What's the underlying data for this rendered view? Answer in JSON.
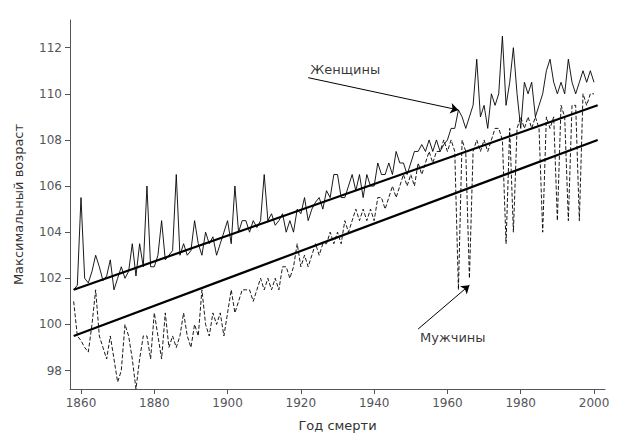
{
  "chart_data": {
    "type": "line",
    "xlabel": "Год смерти",
    "ylabel": "Максимальный возраст",
    "xlim": [
      1857,
      2003
    ],
    "ylim": [
      97.2,
      113.2
    ],
    "xticks": [
      1860,
      1880,
      1900,
      1920,
      1940,
      1960,
      1980,
      2000
    ],
    "yticks": [
      98,
      100,
      102,
      104,
      106,
      108,
      110,
      112
    ],
    "grid": false,
    "series": [
      {
        "color": "#000000",
        "line_style": "solid",
        "x": [
          1858,
          1859,
          1860,
          1861,
          1862,
          1863,
          1864,
          1865,
          1866,
          1867,
          1868,
          1869,
          1870,
          1871,
          1872,
          1873,
          1874,
          1875,
          1876,
          1877,
          1878,
          1879,
          1880,
          1881,
          1882,
          1883,
          1884,
          1885,
          1886,
          1887,
          1888,
          1889,
          1890,
          1891,
          1892,
          1893,
          1894,
          1895,
          1896,
          1897,
          1898,
          1899,
          1900,
          1901,
          1902,
          1903,
          1904,
          1905,
          1906,
          1907,
          1908,
          1909,
          1910,
          1911,
          1912,
          1913,
          1914,
          1915,
          1916,
          1917,
          1918,
          1919,
          1920,
          1921,
          1922,
          1923,
          1924,
          1925,
          1926,
          1927,
          1928,
          1929,
          1930,
          1931,
          1932,
          1933,
          1934,
          1935,
          1936,
          1937,
          1938,
          1939,
          1940,
          1941,
          1942,
          1943,
          1944,
          1945,
          1946,
          1947,
          1948,
          1949,
          1950,
          1951,
          1952,
          1953,
          1954,
          1955,
          1956,
          1957,
          1958,
          1959,
          1960,
          1961,
          1962,
          1963,
          1964,
          1965,
          1966,
          1967,
          1968,
          1969,
          1970,
          1971,
          1972,
          1973,
          1974,
          1975,
          1976,
          1977,
          1978,
          1979,
          1980,
          1981,
          1982,
          1983,
          1984,
          1985,
          1986,
          1987,
          1988,
          1989,
          1990,
          1991,
          1992,
          1993,
          1994,
          1995,
          1996,
          1997,
          1998,
          1999,
          2000
        ],
        "values": [
          101.5,
          101.7,
          105.5,
          102.0,
          101.8,
          102.3,
          103.0,
          102.5,
          101.9,
          102.1,
          102.8,
          101.5,
          102.0,
          102.5,
          102.0,
          102.3,
          103.5,
          102.1,
          103.5,
          102.5,
          106.0,
          102.5,
          102.5,
          103.0,
          104.5,
          102.8,
          103.0,
          103.2,
          106.5,
          103.0,
          103.5,
          103.0,
          103.2,
          104.5,
          103.5,
          103.0,
          104.0,
          103.5,
          103.8,
          103.0,
          103.5,
          104.0,
          104.5,
          103.5,
          106.0,
          104.0,
          104.5,
          104.5,
          104.0,
          104.5,
          104.2,
          104.5,
          106.5,
          104.5,
          104.8,
          104.3,
          104.5,
          104.8,
          104.0,
          104.5,
          104.0,
          105.0,
          104.8,
          105.5,
          104.5,
          105.0,
          105.3,
          105.5,
          105.0,
          105.8,
          105.5,
          106.5,
          106.5,
          105.5,
          105.5,
          106.0,
          106.5,
          105.8,
          106.5,
          105.5,
          106.5,
          106.0,
          106.0,
          107.0,
          106.5,
          106.5,
          107.0,
          106.5,
          107.5,
          107.0,
          107.0,
          106.5,
          107.0,
          107.5,
          107.5,
          107.8,
          107.5,
          108.0,
          107.5,
          108.0,
          107.5,
          107.8,
          108.0,
          108.5,
          108.5,
          109.3,
          109.0,
          108.5,
          109.0,
          109.5,
          111.5,
          109.0,
          109.5,
          108.5,
          110.0,
          109.5,
          110.0,
          112.5,
          109.5,
          110.5,
          112.0,
          110.0,
          108.5,
          110.5,
          110.0,
          110.5,
          109.0,
          109.5,
          110.0,
          111.0,
          111.5,
          110.5,
          110.0,
          110.5,
          110.0,
          111.5,
          110.5,
          110.0,
          110.5,
          111.0,
          110.5,
          111.0,
          110.5
        ]
      },
      {
        "color": "#000000",
        "line_style": "dashed",
        "x": [
          1858,
          1859,
          1860,
          1861,
          1862,
          1863,
          1864,
          1865,
          1866,
          1867,
          1868,
          1869,
          1870,
          1871,
          1872,
          1873,
          1874,
          1875,
          1876,
          1877,
          1878,
          1879,
          1880,
          1881,
          1882,
          1883,
          1884,
          1885,
          1886,
          1887,
          1888,
          1889,
          1890,
          1891,
          1892,
          1893,
          1894,
          1895,
          1896,
          1897,
          1898,
          1899,
          1900,
          1901,
          1902,
          1903,
          1904,
          1905,
          1906,
          1907,
          1908,
          1909,
          1910,
          1911,
          1912,
          1913,
          1914,
          1915,
          1916,
          1917,
          1918,
          1919,
          1920,
          1921,
          1922,
          1923,
          1924,
          1925,
          1926,
          1927,
          1928,
          1929,
          1930,
          1931,
          1932,
          1933,
          1934,
          1935,
          1936,
          1937,
          1938,
          1939,
          1940,
          1941,
          1942,
          1943,
          1944,
          1945,
          1946,
          1947,
          1948,
          1949,
          1950,
          1951,
          1952,
          1953,
          1954,
          1955,
          1956,
          1957,
          1958,
          1959,
          1960,
          1961,
          1962,
          1963,
          1964,
          1965,
          1966,
          1967,
          1968,
          1969,
          1970,
          1971,
          1972,
          1973,
          1974,
          1975,
          1976,
          1977,
          1978,
          1979,
          1980,
          1981,
          1982,
          1983,
          1984,
          1985,
          1986,
          1987,
          1988,
          1989,
          1990,
          1991,
          1992,
          1993,
          1994,
          1995,
          1996,
          1997,
          1998,
          1999,
          2000
        ],
        "values": [
          101.0,
          99.5,
          99.3,
          99.0,
          98.8,
          100.0,
          101.5,
          99.5,
          99.0,
          98.5,
          99.5,
          98.5,
          97.5,
          98.0,
          100.0,
          99.5,
          98.5,
          97.2,
          98.5,
          99.5,
          99.5,
          98.5,
          100.5,
          99.5,
          98.5,
          100.5,
          99.0,
          99.5,
          99.0,
          99.5,
          100.5,
          99.5,
          99.0,
          100.0,
          99.5,
          101.5,
          100.0,
          99.5,
          100.5,
          100.0,
          100.5,
          99.5,
          100.5,
          101.5,
          100.5,
          101.0,
          101.5,
          101.5,
          101.5,
          101.0,
          101.5,
          102.0,
          101.5,
          102.0,
          101.5,
          102.0,
          101.5,
          102.5,
          102.5,
          102.0,
          102.5,
          103.5,
          102.5,
          103.0,
          102.5,
          103.0,
          103.5,
          103.0,
          103.5,
          103.5,
          104.0,
          103.5,
          104.0,
          103.5,
          104.5,
          104.0,
          104.5,
          105.0,
          104.5,
          105.0,
          104.5,
          105.0,
          104.5,
          105.5,
          105.5,
          105.0,
          105.5,
          106.0,
          105.5,
          106.0,
          106.5,
          106.0,
          106.5,
          106.0,
          107.0,
          106.5,
          107.0,
          107.5,
          107.0,
          107.5,
          107.5,
          108.0,
          107.5,
          108.0,
          107.5,
          101.5,
          108.0,
          107.5,
          102.0,
          107.5,
          108.0,
          107.5,
          108.0,
          107.5,
          108.0,
          108.5,
          108.5,
          108.0,
          103.5,
          108.5,
          104.0,
          108.5,
          109.0,
          108.5,
          109.0,
          108.5,
          109.0,
          108.5,
          104.0,
          109.0,
          108.5,
          109.0,
          104.5,
          109.5,
          109.0,
          104.5,
          109.5,
          109.5,
          104.5,
          110.0,
          109.5,
          110.0,
          110.0
        ]
      },
      {
        "color": "#000000",
        "line_style": "solid",
        "x": [
          1858,
          2001
        ],
        "values": [
          101.5,
          109.5
        ]
      },
      {
        "color": "#000000",
        "line_style": "solid",
        "x": [
          1858,
          2001
        ],
        "values": [
          99.5,
          108.0
        ]
      }
    ],
    "annotations": [
      {
        "text": "Женщины",
        "x": 1922,
        "y": 110.7,
        "arrow_x": 1963,
        "arrow_y": 109.3
      },
      {
        "text": "Мужчины",
        "x": 1952,
        "y": 99.8,
        "arrow_x": 1966,
        "arrow_y": 101.7
      }
    ]
  }
}
